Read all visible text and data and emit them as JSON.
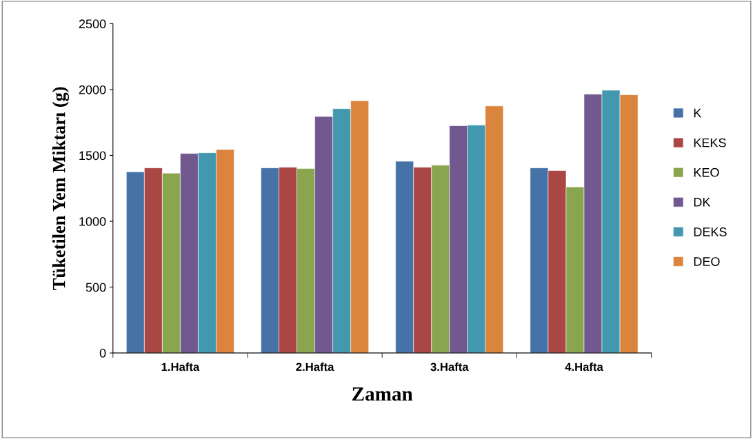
{
  "chart_data": {
    "type": "bar",
    "xlabel": "Zaman",
    "ylabel": "Tüketilen Yem Miktarı (g)",
    "categories": [
      "1.Hafta",
      "2.Hafta",
      "3.Hafta",
      "4.Hafta"
    ],
    "series": [
      {
        "name": "K",
        "color": "#4572a7",
        "values": [
          1375,
          1405,
          1455,
          1405
        ]
      },
      {
        "name": "KEKS",
        "color": "#aa4643",
        "values": [
          1405,
          1410,
          1410,
          1385
        ]
      },
      {
        "name": "KEO",
        "color": "#89a54e",
        "values": [
          1365,
          1400,
          1425,
          1260
        ]
      },
      {
        "name": "DK",
        "color": "#71588f",
        "values": [
          1515,
          1795,
          1725,
          1965
        ]
      },
      {
        "name": "DEKS",
        "color": "#4198af",
        "values": [
          1520,
          1855,
          1730,
          1995
        ]
      },
      {
        "name": "DEO",
        "color": "#db843d",
        "values": [
          1545,
          1915,
          1875,
          1960
        ]
      }
    ],
    "ylim": [
      0,
      2500
    ],
    "yticks": [
      0,
      500,
      1000,
      1500,
      2000,
      2500
    ],
    "grid": false,
    "legend": "right"
  }
}
